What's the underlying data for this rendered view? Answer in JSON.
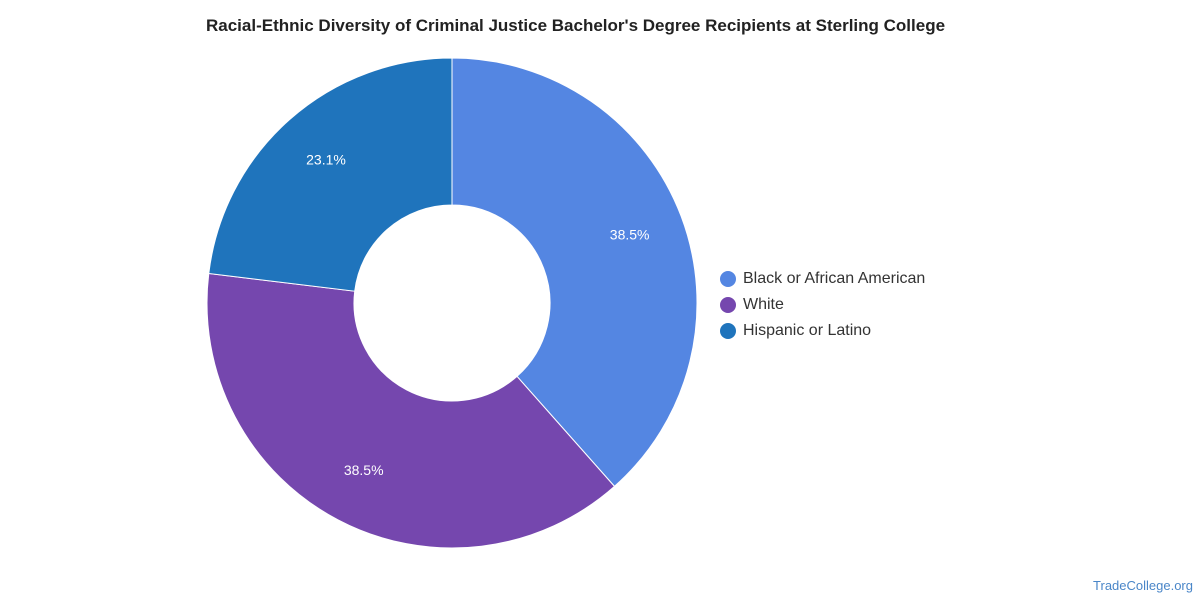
{
  "chart_data": {
    "type": "pie",
    "title": "Racial-Ethnic Diversity of Criminal Justice Bachelor's Degree Recipients at Sterling College",
    "donut": true,
    "legend_position": "right",
    "slices": [
      {
        "name": "Black or African American",
        "value": 38.5,
        "label": "38.5%",
        "color": "#5486e2"
      },
      {
        "name": "White",
        "value": 38.5,
        "label": "38.5%",
        "color": "#7547ae"
      },
      {
        "name": "Hispanic or Latino",
        "value": 23.1,
        "label": "23.1%",
        "color": "#1f74bc"
      }
    ]
  },
  "watermark": "TradeCollege.org"
}
